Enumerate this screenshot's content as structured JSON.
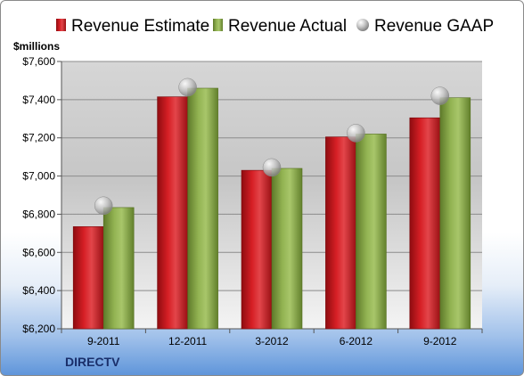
{
  "company": "DIRECTV",
  "colors": {
    "estimate": "#c4161c",
    "actual": "#8cad4c",
    "gaap": "#b8b8b8"
  },
  "chart_data": {
    "type": "bar",
    "title": "",
    "ylabel": "$millions",
    "xlabel": "",
    "categories": [
      "9-2011",
      "12-2011",
      "3-2012",
      "6-2012",
      "9-2012"
    ],
    "series": [
      {
        "name": "Revenue Estimate",
        "values": [
          6735,
          7415,
          7030,
          7205,
          7305
        ]
      },
      {
        "name": "Revenue Actual",
        "values": [
          6835,
          7460,
          7040,
          7220,
          7410
        ]
      },
      {
        "name": "Revenue GAAP",
        "values": [
          6845,
          7465,
          7045,
          7225,
          7420
        ]
      }
    ],
    "ylim": [
      6200,
      7600
    ],
    "yticks": [
      "$6,200",
      "$6,400",
      "$6,600",
      "$6,800",
      "$7,000",
      "$7,200",
      "$7,400",
      "$7,600"
    ],
    "grid": true,
    "legend_position": "top"
  }
}
